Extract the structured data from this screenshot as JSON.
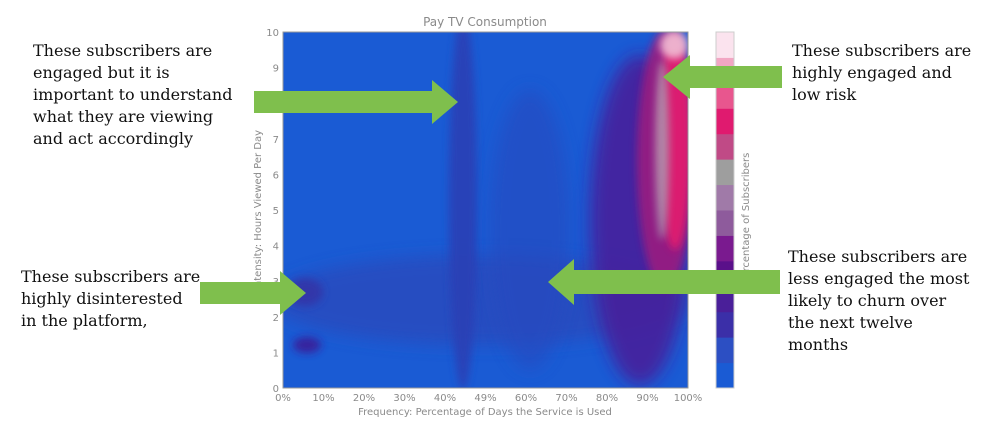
{
  "chart_data": {
    "type": "heatmap",
    "title": "Pay TV Consumption",
    "xlabel": "Frequency: Percentage of Days the Service is Used",
    "ylabel": "Intensity: Hours Viewed Per Day",
    "colorbar_label": "Percentage of Subscribers",
    "x_tick_labels": [
      "0%",
      "10%",
      "20%",
      "30%",
      "40%",
      "49%",
      "60%",
      "70%",
      "80%",
      "90%",
      "100%"
    ],
    "y_tick_labels": [
      "0",
      "1",
      "2",
      "3",
      "4",
      "5",
      "6",
      "7",
      "8",
      "9",
      "10"
    ],
    "xlim": [
      0,
      100
    ],
    "ylim": [
      0,
      10
    ],
    "colorscale": [
      "#1a5bd4",
      "#2c4fc3",
      "#3b2fa8",
      "#4a1f99",
      "#5a108a",
      "#7a1a8f",
      "#8e5b9c",
      "#a07aa8",
      "#9e9e9e",
      "#c04a86",
      "#e01a6f",
      "#e8568e",
      "#f2a6c3",
      "#fbe3ee"
    ],
    "hotspots": [
      {
        "x": 94,
        "y": 1.0,
        "y2": 9.9,
        "level": "high"
      },
      {
        "x": 45,
        "y": 0.5,
        "y2": 10,
        "level": "medium"
      },
      {
        "x": 6,
        "y": 1.2,
        "level": "medium"
      },
      {
        "x": 5,
        "y": 2.7,
        "level": "medium"
      }
    ]
  },
  "annotations": [
    {
      "id": "engaged",
      "text": "These subscribers are\nengaged but it is\nimportant to understand\nwhat they are viewing\nand act accordingly",
      "target_x": 45,
      "target_y": 8.1
    },
    {
      "id": "high",
      "text": "These subscribers are\nhighly engaged and\nlow risk",
      "target_x": 95,
      "target_y": 8.8
    },
    {
      "id": "disinterested",
      "text": "These subscribers are\nhighly disinterested\nin the platform,",
      "target_x": 5,
      "target_y": 2.7
    },
    {
      "id": "less",
      "text": "These subscribers are\nless engaged the most\nlikely to churn over\nthe next twelve\nmonths",
      "target_x": 66,
      "target_y": 3.0
    }
  ],
  "colors": {
    "arrow": "#7fbf4d",
    "text": "#111111",
    "axis": "#8a8a8a",
    "background_blue": "#1a5bd4"
  }
}
